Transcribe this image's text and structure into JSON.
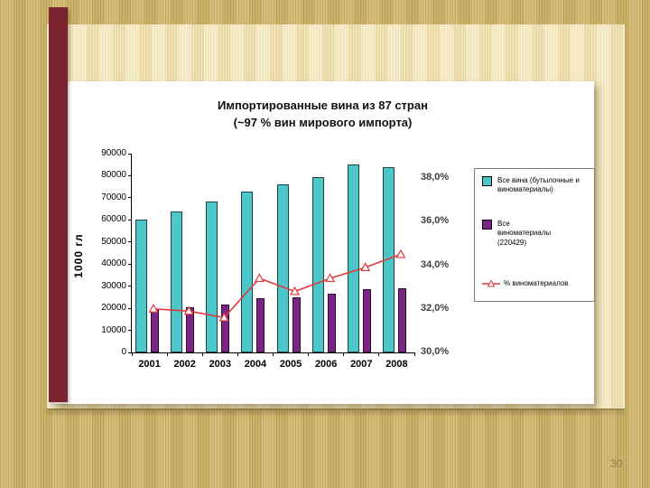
{
  "slide": {
    "page_number": "30"
  },
  "chart_data": {
    "type": "bar+line",
    "title_line1": "Импортированные вина из 87 стран",
    "title_line2": "(~97 % вин мирового импорта)",
    "categories": [
      "2001",
      "2002",
      "2003",
      "2004",
      "2005",
      "2006",
      "2007",
      "2008"
    ],
    "series": [
      {
        "name": "Все вина (бутылочные и виноматериалы)",
        "type": "bar",
        "axis": "left",
        "color": "#4cc6c9",
        "values": [
          60000,
          64000,
          68500,
          73000,
          76000,
          79500,
          85000,
          84000
        ]
      },
      {
        "name": "Все виноматериалы (220429)",
        "type": "bar",
        "axis": "left",
        "color": "#7b2483",
        "values": [
          19200,
          20400,
          21700,
          24400,
          24900,
          26600,
          28800,
          29000
        ]
      },
      {
        "name": "% виноматериалов",
        "type": "line",
        "axis": "right",
        "color": "#e0393e",
        "values": [
          32.0,
          31.9,
          31.6,
          33.4,
          32.8,
          33.4,
          33.9,
          34.5
        ]
      }
    ],
    "left_axis": {
      "label": "1000 гл",
      "min": 0,
      "max": 90000,
      "step": 10000,
      "ticks": [
        "0",
        "10000",
        "20000",
        "30000",
        "40000",
        "50000",
        "60000",
        "70000",
        "80000",
        "90000"
      ]
    },
    "right_axis": {
      "min": 30,
      "max": 38,
      "step": 2,
      "ticks": [
        "30,0%",
        "32,0%",
        "34,0%",
        "36,0%",
        "38,0%"
      ]
    },
    "legend": [
      {
        "label": "Все вина (бутылочные и виноматериалы)",
        "swatch": "square",
        "color": "#4cc6c9"
      },
      {
        "label": "Все виноматериалы (220429)",
        "swatch": "square",
        "color": "#7b2483"
      },
      {
        "label": "% виноматериалов",
        "swatch": "line-triangle",
        "color": "#e0393e"
      }
    ],
    "layout": {
      "grid": "off",
      "legend_position": "right"
    }
  }
}
